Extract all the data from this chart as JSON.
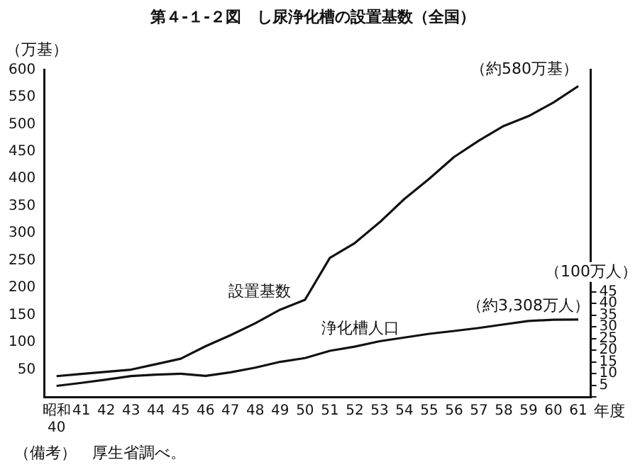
{
  "chart_data": {
    "type": "line",
    "title": "第４-１-２図　し尿浄化槽の設置基数（全国）",
    "ylabel": "（万基）",
    "y2label": "（100万人）",
    "xlabel": "年度",
    "categories": [
      "昭和40",
      "41",
      "42",
      "43",
      "44",
      "45",
      "46",
      "47",
      "48",
      "49",
      "50",
      "51",
      "52",
      "53",
      "54",
      "55",
      "56",
      "57",
      "58",
      "59",
      "60",
      "61"
    ],
    "series": [
      {
        "name": "設置基数",
        "color": "#111111",
        "values": [
          38,
          42,
          46,
          50,
          60,
          70,
          93,
          113,
          135,
          160,
          178,
          255,
          282,
          320,
          363,
          400,
          440,
          470,
          497,
          515,
          540,
          570
        ]
      },
      {
        "name": "浄化槽人口",
        "color": "#111111",
        "axis": "y2",
        "values": [
          4.7,
          6,
          7.4,
          8.9,
          9.5,
          9.9,
          9,
          10.5,
          12.5,
          15,
          16.6,
          19.7,
          21.5,
          23.8,
          25.4,
          27,
          28.2,
          29.5,
          31,
          32.5,
          33,
          33.08
        ]
      }
    ],
    "annotations": [
      {
        "text": "（約580万基）",
        "x": "61",
        "y": 570
      },
      "（約3,308万人）",
      "（備考）　厚生省調べ。"
    ],
    "ylim": [
      0,
      600
    ],
    "yticks": [
      {
        "value": 0,
        "label": null
      },
      50,
      100,
      150,
      200,
      250,
      300,
      350,
      400,
      450,
      500,
      550,
      600
    ],
    "y2lim": [
      0,
      140
    ],
    "y2ticks": [
      {
        "value": 0,
        "label": null
      },
      5,
      10,
      15,
      20,
      25,
      30,
      35,
      40,
      45
    ],
    "grid": false,
    "legend": false,
    "marker": "none",
    "line_style": "solid"
  }
}
